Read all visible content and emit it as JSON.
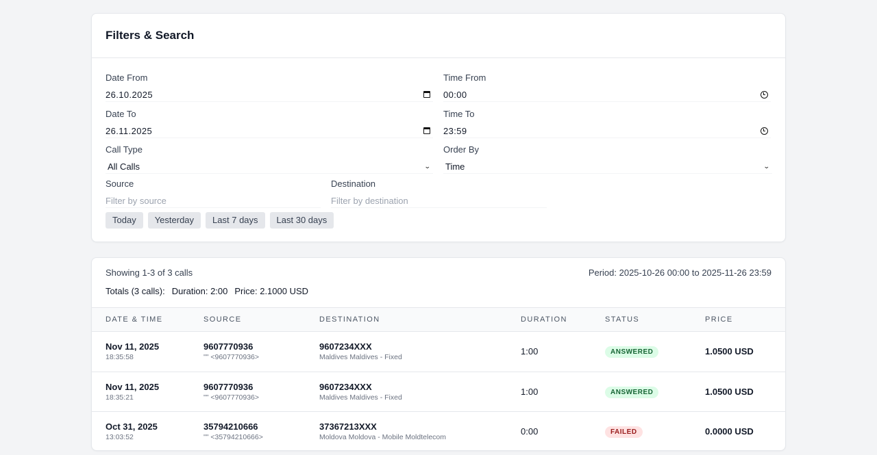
{
  "filters": {
    "title": "Filters & Search",
    "date_from": {
      "label": "Date From",
      "value": "26.10.2025"
    },
    "time_from": {
      "label": "Time From",
      "value": "00:00"
    },
    "date_to": {
      "label": "Date To",
      "value": "26.11.2025"
    },
    "time_to": {
      "label": "Time To",
      "value": "23:59"
    },
    "call_type": {
      "label": "Call Type",
      "value": "All Calls"
    },
    "order_by": {
      "label": "Order By",
      "value": "Time"
    },
    "source": {
      "label": "Source",
      "placeholder": "Filter by source"
    },
    "destination": {
      "label": "Destination",
      "placeholder": "Filter by destination"
    },
    "quick_buttons": [
      "Today",
      "Yesterday",
      "Last 7 days",
      "Last 30 days"
    ]
  },
  "results": {
    "showing": "Showing 1-3 of 3 calls",
    "period": "Period: 2025-10-26 00:00 to 2025-11-26 23:59",
    "totals_label": "Totals (3 calls):",
    "totals_duration": "Duration: 2:00",
    "totals_price": "Price: 2.1000 USD",
    "columns": [
      "Date & Time",
      "Source",
      "Destination",
      "Duration",
      "Status",
      "Price"
    ],
    "rows": [
      {
        "date": "Nov 11, 2025",
        "time": "18:35:58",
        "source": "9607770936",
        "source_sub": "\"\" <9607770936>",
        "dest": "9607234XXX",
        "dest_sub": "Maldives Maldives - Fixed",
        "duration": "1:00",
        "status": "ANSWERED",
        "price": "1.0500 USD"
      },
      {
        "date": "Nov 11, 2025",
        "time": "18:35:21",
        "source": "9607770936",
        "source_sub": "\"\" <9607770936>",
        "dest": "9607234XXX",
        "dest_sub": "Maldives Maldives - Fixed",
        "duration": "1:00",
        "status": "ANSWERED",
        "price": "1.0500 USD"
      },
      {
        "date": "Oct 31, 2025",
        "time": "13:03:52",
        "source": "35794210666",
        "source_sub": "\"\" <35794210666>",
        "dest": "37367213XXX",
        "dest_sub": "Moldova Moldova - Mobile Moldtelecom",
        "duration": "0:00",
        "status": "FAILED",
        "price": "0.0000 USD"
      }
    ]
  },
  "colors": {
    "background": "#f3f4f6",
    "answered_bg": "#dcfce7",
    "answered_text": "#166534",
    "failed_bg": "#fee2e2",
    "failed_text": "#991b1b"
  }
}
